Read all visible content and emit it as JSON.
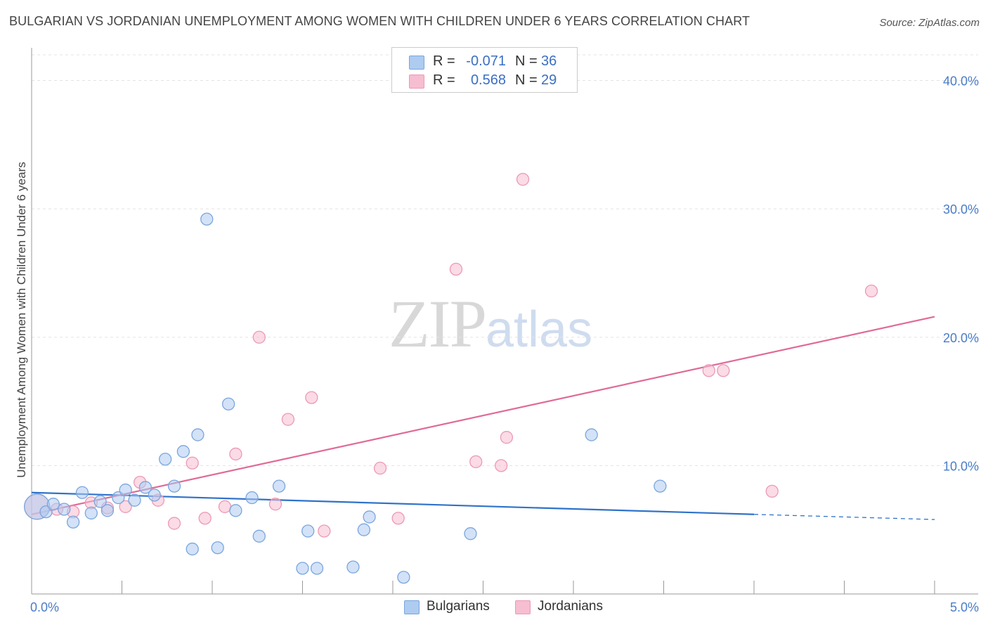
{
  "title": "BULGARIAN VS JORDANIAN UNEMPLOYMENT AMONG WOMEN WITH CHILDREN UNDER 6 YEARS CORRELATION CHART",
  "source": "Source: ZipAtlas.com",
  "watermark": {
    "zip": "ZIP",
    "atlas": "atlas"
  },
  "legend": {
    "rows": [
      {
        "r_label": "R =",
        "r_value": "-0.071",
        "n_label": "N =",
        "n_value": "36"
      },
      {
        "r_label": "R =",
        "r_value": "0.568",
        "n_label": "N =",
        "n_value": "29"
      }
    ]
  },
  "bottom_legend": {
    "bulgarians": "Bulgarians",
    "jordanians": "Jordanians"
  },
  "colors": {
    "bulgarian_fill": "#aecbf0",
    "bulgarian_stroke": "#7aa6de",
    "bulgarian_line": "#2f72c9",
    "jordanian_fill": "#f7bdd0",
    "jordanian_stroke": "#eb9ab6",
    "jordanian_line": "#e06a97",
    "tick_text": "#4a7cc7",
    "grid": "#e3e3e3"
  },
  "chart_data": {
    "type": "scatter",
    "title": "BULGARIAN VS JORDANIAN UNEMPLOYMENT AMONG WOMEN WITH CHILDREN UNDER 6 YEARS CORRELATION CHART",
    "xlabel": "",
    "ylabel": "Unemployment Among Women with Children Under 6 years",
    "xlim": [
      0.0,
      5.0
    ],
    "ylim": [
      0.0,
      42.0
    ],
    "x_tick_labels": [
      "0.0%",
      "5.0%"
    ],
    "y_ticks": [
      10,
      20,
      30,
      40
    ],
    "y_tick_labels": [
      "10.0%",
      "20.0%",
      "30.0%",
      "40.0%"
    ],
    "grid": true,
    "legend_position": "top-center",
    "series": [
      {
        "name": "Bulgarians",
        "r": -0.071,
        "n": 36,
        "points": [
          {
            "x": 0.03,
            "y": 6.8,
            "big": true
          },
          {
            "x": 0.08,
            "y": 6.4
          },
          {
            "x": 0.12,
            "y": 7.0
          },
          {
            "x": 0.18,
            "y": 6.6
          },
          {
            "x": 0.23,
            "y": 5.6
          },
          {
            "x": 0.28,
            "y": 7.9
          },
          {
            "x": 0.33,
            "y": 6.3
          },
          {
            "x": 0.38,
            "y": 7.2
          },
          {
            "x": 0.42,
            "y": 6.5
          },
          {
            "x": 0.48,
            "y": 7.5
          },
          {
            "x": 0.52,
            "y": 8.1
          },
          {
            "x": 0.57,
            "y": 7.3
          },
          {
            "x": 0.63,
            "y": 8.3
          },
          {
            "x": 0.68,
            "y": 7.7
          },
          {
            "x": 0.74,
            "y": 10.5
          },
          {
            "x": 0.79,
            "y": 8.4
          },
          {
            "x": 0.84,
            "y": 11.1
          },
          {
            "x": 0.89,
            "y": 3.5
          },
          {
            "x": 0.92,
            "y": 12.4
          },
          {
            "x": 0.97,
            "y": 29.2
          },
          {
            "x": 1.03,
            "y": 3.6
          },
          {
            "x": 1.09,
            "y": 14.8
          },
          {
            "x": 1.13,
            "y": 6.5
          },
          {
            "x": 1.22,
            "y": 7.5
          },
          {
            "x": 1.26,
            "y": 4.5
          },
          {
            "x": 1.37,
            "y": 8.4
          },
          {
            "x": 1.5,
            "y": 2.0
          },
          {
            "x": 1.53,
            "y": 4.9
          },
          {
            "x": 1.58,
            "y": 2.0
          },
          {
            "x": 1.78,
            "y": 2.1
          },
          {
            "x": 1.84,
            "y": 5.0
          },
          {
            "x": 1.87,
            "y": 6.0
          },
          {
            "x": 2.06,
            "y": 1.3
          },
          {
            "x": 2.43,
            "y": 4.7
          },
          {
            "x": 3.1,
            "y": 12.4
          },
          {
            "x": 3.48,
            "y": 8.4
          }
        ],
        "trend": {
          "x_start": 0.0,
          "y_start": 7.9,
          "x_end": 4.0,
          "y_end": 6.2,
          "dashed_to_x": 5.0,
          "dashed_to_y": 5.8
        }
      },
      {
        "name": "Jordanians",
        "r": 0.568,
        "n": 29,
        "points": [
          {
            "x": 0.03,
            "y": 6.8,
            "big": true
          },
          {
            "x": 0.14,
            "y": 6.6
          },
          {
            "x": 0.23,
            "y": 6.4
          },
          {
            "x": 0.33,
            "y": 7.1
          },
          {
            "x": 0.42,
            "y": 6.7
          },
          {
            "x": 0.52,
            "y": 6.8
          },
          {
            "x": 0.6,
            "y": 8.7
          },
          {
            "x": 0.7,
            "y": 7.3
          },
          {
            "x": 0.79,
            "y": 5.5
          },
          {
            "x": 0.89,
            "y": 10.2
          },
          {
            "x": 0.96,
            "y": 5.9
          },
          {
            "x": 1.07,
            "y": 6.8
          },
          {
            "x": 1.13,
            "y": 10.9
          },
          {
            "x": 1.26,
            "y": 20.0
          },
          {
            "x": 1.35,
            "y": 7.0
          },
          {
            "x": 1.42,
            "y": 13.6
          },
          {
            "x": 1.55,
            "y": 15.3
          },
          {
            "x": 1.62,
            "y": 4.9
          },
          {
            "x": 1.93,
            "y": 9.8
          },
          {
            "x": 2.03,
            "y": 5.9
          },
          {
            "x": 2.35,
            "y": 25.3
          },
          {
            "x": 2.46,
            "y": 10.3
          },
          {
            "x": 2.6,
            "y": 10.0
          },
          {
            "x": 2.63,
            "y": 12.2
          },
          {
            "x": 2.72,
            "y": 32.3
          },
          {
            "x": 3.75,
            "y": 17.4
          },
          {
            "x": 3.83,
            "y": 17.4
          },
          {
            "x": 4.1,
            "y": 8.0
          },
          {
            "x": 4.65,
            "y": 23.6
          }
        ],
        "trend": {
          "x_start": 0.0,
          "y_start": 6.2,
          "x_end": 5.0,
          "y_end": 21.6
        }
      }
    ]
  }
}
